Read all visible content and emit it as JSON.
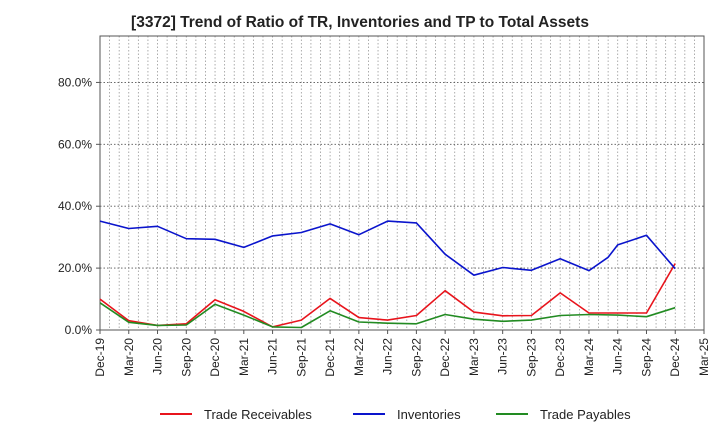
{
  "chart_data": {
    "type": "line",
    "title": "[3372]  Trend of Ratio of TR, Inventories and TP to Total Assets",
    "xlabel": "",
    "ylabel": "",
    "x_tick_labels": [
      "Dec-19",
      "Mar-20",
      "Jun-20",
      "Sep-20",
      "Dec-20",
      "Mar-21",
      "Jun-21",
      "Sep-21",
      "Dec-21",
      "Mar-22",
      "Jun-22",
      "Sep-22",
      "Dec-22",
      "Mar-23",
      "Jun-23",
      "Sep-23",
      "Dec-23",
      "Mar-24",
      "Jun-24",
      "Sep-24",
      "Dec-24",
      "Mar-25"
    ],
    "x_start": "2019-12",
    "x_end": "2025-03",
    "ylim": [
      0,
      95
    ],
    "y_ticks": [
      0,
      20,
      40,
      60,
      80
    ],
    "y_tick_labels": [
      "0.0%",
      "20.0%",
      "40.0%",
      "60.0%",
      "80.0%"
    ],
    "grid": true,
    "legend_position": "bottom",
    "series": [
      {
        "name": "Trade Receivables",
        "color": "#e8141c",
        "points": [
          [
            "2019-12",
            10.0
          ],
          [
            "2020-03",
            3.0
          ],
          [
            "2020-06",
            1.5
          ],
          [
            "2020-09",
            2.0
          ],
          [
            "2020-12",
            9.8
          ],
          [
            "2021-03",
            6.0
          ],
          [
            "2021-06",
            1.0
          ],
          [
            "2021-09",
            3.2
          ],
          [
            "2021-12",
            10.2
          ],
          [
            "2022-03",
            4.0
          ],
          [
            "2022-06",
            3.2
          ],
          [
            "2022-09",
            4.7
          ],
          [
            "2022-12",
            12.7
          ],
          [
            "2023-03",
            5.8
          ],
          [
            "2023-06",
            4.6
          ],
          [
            "2023-09",
            4.7
          ],
          [
            "2023-12",
            12.0
          ],
          [
            "2024-03",
            5.5
          ],
          [
            "2024-06",
            5.5
          ],
          [
            "2024-09",
            5.5
          ],
          [
            "2024-12",
            21.5
          ]
        ]
      },
      {
        "name": "Inventories",
        "color": "#0a14cc",
        "points": [
          [
            "2019-12",
            35.2
          ],
          [
            "2020-03",
            32.8
          ],
          [
            "2020-06",
            33.5
          ],
          [
            "2020-09",
            29.5
          ],
          [
            "2020-12",
            29.3
          ],
          [
            "2021-03",
            26.7
          ],
          [
            "2021-06",
            30.4
          ],
          [
            "2021-09",
            31.5
          ],
          [
            "2021-12",
            34.3
          ],
          [
            "2022-03",
            30.8
          ],
          [
            "2022-06",
            35.2
          ],
          [
            "2022-09",
            34.6
          ],
          [
            "2022-12",
            24.5
          ],
          [
            "2023-03",
            17.7
          ],
          [
            "2023-06",
            20.2
          ],
          [
            "2023-09",
            19.3
          ],
          [
            "2023-12",
            23.0
          ],
          [
            "2024-03",
            19.2
          ],
          [
            "2024-05",
            23.5
          ],
          [
            "2024-06",
            27.5
          ],
          [
            "2024-09",
            30.6
          ],
          [
            "2024-12",
            19.8
          ]
        ]
      },
      {
        "name": "Trade Payables",
        "color": "#228b22",
        "points": [
          [
            "2019-12",
            8.8
          ],
          [
            "2020-03",
            2.5
          ],
          [
            "2020-06",
            1.5
          ],
          [
            "2020-09",
            1.6
          ],
          [
            "2020-12",
            8.3
          ],
          [
            "2021-03",
            4.8
          ],
          [
            "2021-06",
            1.0
          ],
          [
            "2021-09",
            0.8
          ],
          [
            "2021-12",
            6.2
          ],
          [
            "2022-03",
            2.6
          ],
          [
            "2022-06",
            2.2
          ],
          [
            "2022-09",
            2.0
          ],
          [
            "2022-12",
            5.0
          ],
          [
            "2023-03",
            3.5
          ],
          [
            "2023-06",
            2.8
          ],
          [
            "2023-09",
            3.2
          ],
          [
            "2023-12",
            4.7
          ],
          [
            "2024-03",
            5.0
          ],
          [
            "2024-06",
            4.8
          ],
          [
            "2024-09",
            4.3
          ],
          [
            "2024-12",
            7.2
          ]
        ]
      }
    ]
  }
}
